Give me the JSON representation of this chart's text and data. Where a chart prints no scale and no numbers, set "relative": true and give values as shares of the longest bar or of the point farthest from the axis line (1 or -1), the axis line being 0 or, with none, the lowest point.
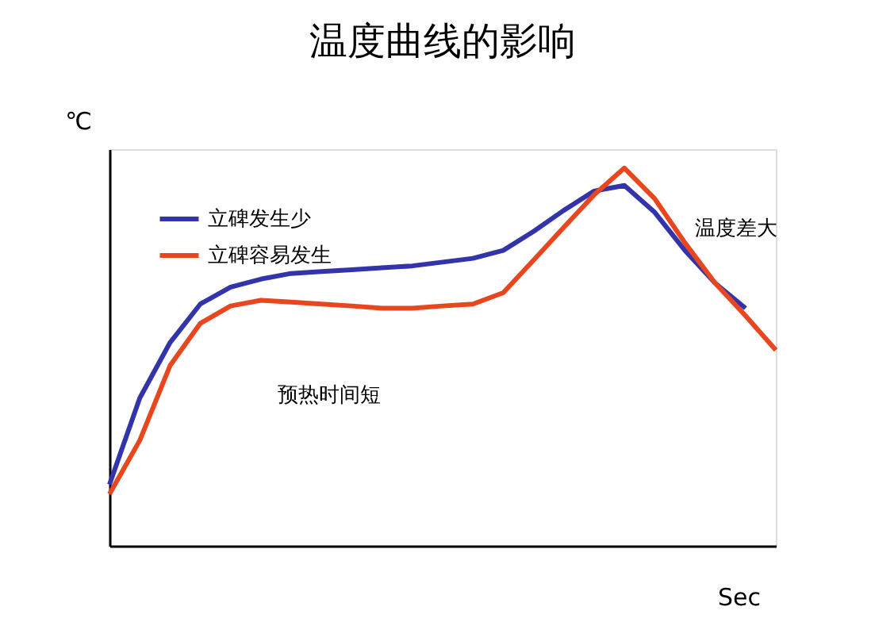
{
  "chart_data": {
    "type": "line",
    "title": "温度曲线的影响",
    "xlabel": "Sec",
    "ylabel": "℃",
    "relative": true,
    "grid": false,
    "legend": "top left",
    "marker": "none",
    "line_style": "solid",
    "annotations": [
      "预热时间短",
      "温度差大"
    ],
    "categories": [
      null,
      null,
      null,
      null,
      null,
      null,
      null,
      null,
      null,
      null,
      null,
      null,
      null,
      null,
      null,
      null,
      null,
      null,
      null,
      null,
      null,
      null,
      null
    ],
    "series": [
      {
        "name": "立碑发生少",
        "color": "#3333aa",
        "values": [
          0.162,
          0.391,
          0.538,
          0.64,
          0.685,
          0.706,
          0.721,
          0.726,
          0.731,
          0.736,
          0.741,
          0.751,
          0.761,
          0.782,
          0.832,
          0.888,
          0.939,
          0.954,
          0.883,
          0.782,
          0.695,
          0.629,
          null
        ]
      },
      {
        "name": "立碑容易发生",
        "color": "#e8461e",
        "values": [
          0.137,
          0.279,
          0.477,
          0.589,
          0.635,
          0.65,
          0.645,
          0.64,
          0.635,
          0.629,
          0.629,
          0.635,
          0.64,
          0.67,
          0.756,
          0.843,
          0.929,
          1,
          0.919,
          0.802,
          0.695,
          0.609,
          0.518
        ]
      }
    ]
  }
}
